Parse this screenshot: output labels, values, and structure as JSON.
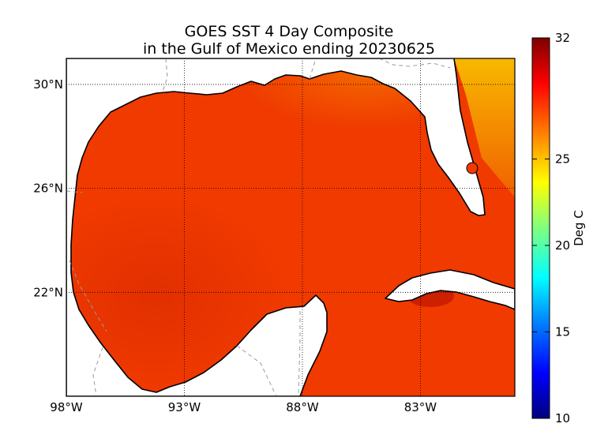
{
  "title": {
    "line1": "GOES SST 4 Day Composite",
    "line2": "in the Gulf of Mexico ending 20230625"
  },
  "map": {
    "lat_labels": [
      "30°N",
      "26°N",
      "22°N"
    ],
    "lon_labels": [
      "98°W",
      "93°W",
      "88°W",
      "83°W"
    ],
    "lat_values": [
      30,
      26,
      22
    ],
    "lon_values": [
      -98,
      -93,
      -88,
      -83
    ],
    "lat_range": [
      18.0,
      31.0
    ],
    "lon_range": [
      -98.0,
      -79.0
    ]
  },
  "colorbar": {
    "label": "Deg C",
    "tick_labels": [
      "32",
      "25",
      "20",
      "15",
      "10"
    ],
    "tick_values": [
      32,
      25,
      20,
      15,
      10
    ],
    "range": [
      10,
      32
    ],
    "colormap": [
      "#00007f",
      "#0000ff",
      "#007fff",
      "#00ffff",
      "#7fff7f",
      "#ffff00",
      "#ff7f00",
      "#ff0000",
      "#7f0000"
    ]
  },
  "colors": {
    "sea_main": "#f03a00",
    "sea_warm": "#e63400",
    "sea_hot": "#c81e00",
    "sea_cool_north": "#f46a00",
    "sea_east": "#f56e00",
    "sea_atlantic": "#f8a400",
    "land": "#ffffff",
    "coast": "#000000",
    "grid": "#000000",
    "border": "#9a9a9a"
  }
}
